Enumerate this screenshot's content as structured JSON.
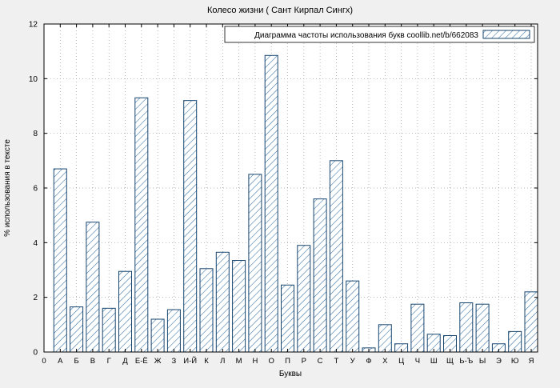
{
  "chart_data": {
    "type": "bar",
    "title": "Колесо жизни ( Сант Кирпал Сингх)",
    "legend_label": "Диаграмма частоты использования букв coollib.net/b/662083",
    "xlabel": "Буквы",
    "ylabel": "% использования в тексте",
    "x_origin_label": "0",
    "categories": [
      "А",
      "Б",
      "В",
      "Г",
      "Д",
      "Е-Ё",
      "Ж",
      "З",
      "И-Й",
      "К",
      "Л",
      "М",
      "Н",
      "О",
      "П",
      "Р",
      "С",
      "Т",
      "У",
      "Ф",
      "Х",
      "Ц",
      "Ч",
      "Ш",
      "Щ",
      "Ь-Ъ",
      "Ы",
      "Э",
      "Ю",
      "Я"
    ],
    "values": [
      6.7,
      1.65,
      4.75,
      1.6,
      2.95,
      9.3,
      1.2,
      1.55,
      9.2,
      3.05,
      3.65,
      3.35,
      6.5,
      10.85,
      2.45,
      3.9,
      5.6,
      7.0,
      2.6,
      0.15,
      1.0,
      0.3,
      1.75,
      0.65,
      0.6,
      1.8,
      1.75,
      0.3,
      0.75,
      2.2
    ],
    "ylim": [
      0,
      12
    ],
    "ytick_step": 2,
    "yticks": [
      0,
      2,
      4,
      6,
      8,
      10,
      12
    ],
    "grid": true,
    "legend_position": "top-right",
    "bar_hatch_color": "#2e6da4",
    "bar_edge_color": "#17456e",
    "grid_color": "#9a9a9a",
    "background": "#f0f0f0",
    "plot_background": "#ffffff"
  }
}
